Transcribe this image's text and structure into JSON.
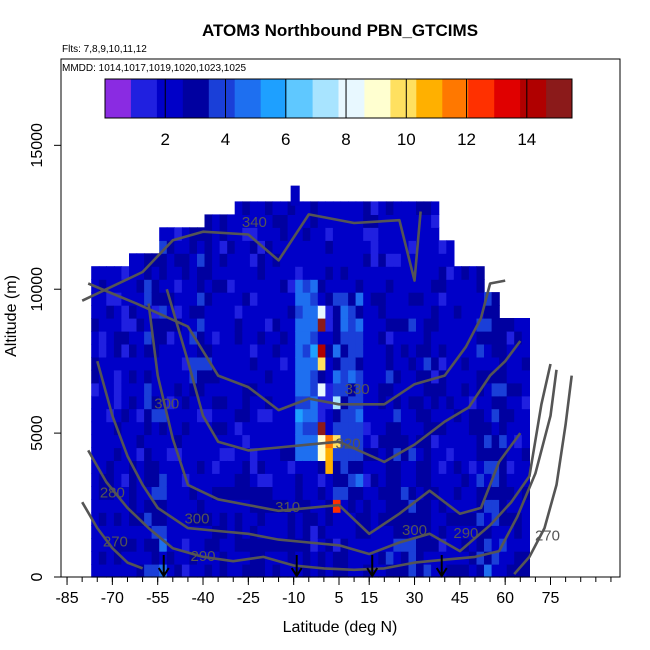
{
  "chart_data": {
    "type": "heatmap",
    "title": "ATOM3 Northbound PBN_GTCIMS",
    "flights_label": "Flts: 7,8,9,10,11,12",
    "dates_label": "MMDD: 1014,1017,1019,1020,1023,1025",
    "xlabel": "Latitude (deg N)",
    "ylabel": "Altitude (m)",
    "xlim": [
      -87,
      98
    ],
    "ylim": [
      0,
      18000
    ],
    "x_ticks": [
      -85,
      -70,
      -55,
      -40,
      -25,
      -10,
      5,
      15,
      30,
      45,
      60,
      75
    ],
    "y_ticks": [
      0,
      5000,
      10000,
      15000
    ],
    "colorbar": {
      "range": [
        0,
        15.5
      ],
      "ticks": [
        2,
        4,
        6,
        8,
        10,
        12,
        14
      ],
      "colors": [
        "#8a2be2",
        "#2020e0",
        "#0000c8",
        "#0000a0",
        "#1a3fd8",
        "#1e6ff0",
        "#1ea0ff",
        "#5fc8ff",
        "#a8e4ff",
        "#e8f8ff",
        "#ffffd0",
        "#ffe060",
        "#ffb000",
        "#ff7800",
        "#ff3000",
        "#e00000",
        "#b00000",
        "#8b1a1a"
      ]
    },
    "isentrope_labels": [
      {
        "text": "340",
        "lat": -23,
        "alt": 12300
      },
      {
        "text": "330",
        "lat": 11,
        "alt": 6500
      },
      {
        "text": "320",
        "lat": 8,
        "alt": 4600
      },
      {
        "text": "310",
        "lat": -12,
        "alt": 2400
      },
      {
        "text": "300",
        "lat": -52,
        "alt": 6000
      },
      {
        "text": "300",
        "lat": -42,
        "alt": 2000
      },
      {
        "text": "300",
        "lat": 30,
        "alt": 1600
      },
      {
        "text": "290",
        "lat": -40,
        "alt": 700
      },
      {
        "text": "290",
        "lat": 47,
        "alt": 1500
      },
      {
        "text": "280",
        "lat": -70,
        "alt": 2900
      },
      {
        "text": "270",
        "lat": -69,
        "alt": 1200
      },
      {
        "text": "270",
        "lat": 74,
        "alt": 1400
      }
    ],
    "profile_markers_lat": [
      -53,
      -9,
      16,
      39
    ]
  }
}
